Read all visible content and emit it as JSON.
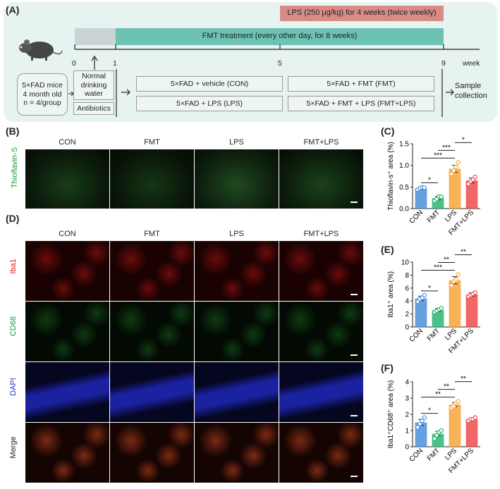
{
  "panels": {
    "A": "(A)",
    "B": "(B)",
    "C": "(C)",
    "D": "(D)",
    "E": "(E)",
    "F": "(F)"
  },
  "timeline": {
    "lps_bar": "LPS (250 μg/kg)  for 4 weeks (twice weekly)",
    "fmt_bar": "FMT treatment (every other day, for 8 weeks)",
    "ticks": [
      "0",
      "1",
      "5",
      "9"
    ],
    "unit": "week",
    "mice_box": [
      "5×FAD mice",
      "4 month old",
      "n = 4/group"
    ],
    "water_box": [
      "Normal",
      "drinking",
      "water"
    ],
    "antibiotics": "Antibiotics",
    "groups": [
      "5×FAD + vehicle (CON)",
      "5×FAD + FMT (FMT)",
      "5×FAD + LPS (LPS)",
      "5×FAD + FMT + LPS (FMT+LPS)"
    ],
    "outcome": [
      "Sample",
      "collection"
    ],
    "colors": {
      "lps": "#d98c87",
      "fmt": "#6cc3b4",
      "antibiotic": "#c9d3d3"
    }
  },
  "image_grid": {
    "columns": [
      "CON",
      "FMT",
      "LPS",
      "FMT+LPS"
    ],
    "thioflavin_label": "Thioflavin-S",
    "rows": [
      "Iba1",
      "CD68",
      "DAPI",
      "Merge"
    ]
  },
  "chart_data": [
    {
      "type": "bar",
      "panel": "C",
      "categories": [
        "CON",
        "FMT",
        "LPS",
        "FMT+LPS"
      ],
      "values": [
        0.47,
        0.24,
        0.92,
        0.65
      ],
      "errors": [
        0.03,
        0.04,
        0.08,
        0.06
      ],
      "points": [
        [
          0.44,
          0.47,
          0.49,
          0.48
        ],
        [
          0.18,
          0.22,
          0.28,
          0.27
        ],
        [
          0.8,
          0.88,
          0.96,
          1.07
        ],
        [
          0.57,
          0.63,
          0.67,
          0.73
        ]
      ],
      "ylabel": "Thioflavin-s⁺ area (%)",
      "ylim": [
        0,
        1.5
      ],
      "yticks": [
        "0.0",
        "0.5",
        "1.0",
        "1.5"
      ],
      "colors": [
        "#4a90d9",
        "#2bb673",
        "#f7a53b",
        "#ef4b4b"
      ],
      "significance": [
        {
          "from": 0,
          "to": 1,
          "label": "*"
        },
        {
          "from": 0,
          "to": 2,
          "label": "***"
        },
        {
          "from": 1,
          "to": 2,
          "label": "***"
        },
        {
          "from": 2,
          "to": 3,
          "label": "*"
        }
      ]
    },
    {
      "type": "bar",
      "panel": "E",
      "categories": [
        "CON",
        "FMT",
        "LPS",
        "FMT+LPS"
      ],
      "values": [
        4.4,
        2.6,
        7.2,
        5.0
      ],
      "errors": [
        0.35,
        0.25,
        0.55,
        0.25
      ],
      "points": [
        [
          3.9,
          4.3,
          4.5,
          4.9
        ],
        [
          2.3,
          2.5,
          2.7,
          2.9
        ],
        [
          6.4,
          7.0,
          7.3,
          8.1
        ],
        [
          4.7,
          4.9,
          5.1,
          5.3
        ]
      ],
      "ylabel": "Iba1⁺ area (%)",
      "ylim": [
        0,
        10
      ],
      "yticks": [
        "0",
        "2",
        "4",
        "6",
        "8",
        "10"
      ],
      "colors": [
        "#4a90d9",
        "#2bb673",
        "#f7a53b",
        "#ef4b4b"
      ],
      "significance": [
        {
          "from": 0,
          "to": 1,
          "label": "*"
        },
        {
          "from": 0,
          "to": 2,
          "label": "***"
        },
        {
          "from": 1,
          "to": 2,
          "label": "**"
        },
        {
          "from": 2,
          "to": 3,
          "label": "**"
        }
      ]
    },
    {
      "type": "bar",
      "panel": "F",
      "categories": [
        "CON",
        "FMT",
        "LPS",
        "FMT+LPS"
      ],
      "values": [
        1.5,
        0.8,
        2.6,
        1.7
      ],
      "errors": [
        0.18,
        0.15,
        0.12,
        0.06
      ],
      "points": [
        [
          1.2,
          1.4,
          1.6,
          1.8
        ],
        [
          0.5,
          0.7,
          0.9,
          1.0
        ],
        [
          2.4,
          2.5,
          2.7,
          2.8
        ],
        [
          1.6,
          1.7,
          1.7,
          1.8
        ]
      ],
      "ylabel": "Iba1⁺CD68⁺ area (%)",
      "ylim": [
        0,
        4
      ],
      "yticks": [
        "0",
        "1",
        "2",
        "3",
        "4"
      ],
      "colors": [
        "#4a90d9",
        "#2bb673",
        "#f7a53b",
        "#ef4b4b"
      ],
      "significance": [
        {
          "from": 0,
          "to": 1,
          "label": "*"
        },
        {
          "from": 0,
          "to": 2,
          "label": "**"
        },
        {
          "from": 1,
          "to": 2,
          "label": "**"
        },
        {
          "from": 2,
          "to": 3,
          "label": "**"
        }
      ]
    }
  ]
}
